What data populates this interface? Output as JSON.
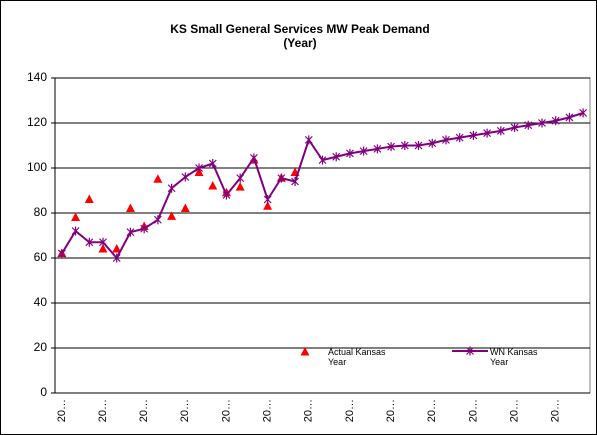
{
  "chart_data": {
    "type": "line",
    "title": "KS Small General Services MW Peak Demand",
    "subtitle": "(Year)",
    "categories": [
      "20…",
      null,
      null,
      "20…",
      null,
      null,
      "20…",
      null,
      null,
      "20…",
      null,
      null,
      "20…",
      null,
      null,
      "20…",
      null,
      null,
      "20…",
      null,
      null,
      "20…",
      null,
      null,
      "20…",
      null,
      null,
      "20…",
      null,
      null,
      "20…",
      null,
      null,
      "20…",
      null,
      null,
      "20…",
      null,
      null
    ],
    "series": [
      {
        "name": "Actual Kansas Year",
        "color": "#ff0000",
        "marker": "triangle",
        "values": [
          62,
          78,
          86,
          64,
          64,
          82,
          74,
          95,
          78.5,
          82,
          98,
          92,
          89,
          91.5,
          103.5,
          83,
          95.5,
          98,
          null,
          null,
          null,
          null,
          null,
          null,
          null,
          null,
          null,
          null,
          null,
          null,
          null,
          null,
          null,
          null,
          null,
          null,
          null,
          null,
          null
        ]
      },
      {
        "name": "WN Kansas Year",
        "color": "#800080",
        "marker": "star",
        "values": [
          62,
          72,
          67,
          67,
          60,
          71.5,
          73,
          77,
          91,
          96,
          100,
          102,
          88,
          95.5,
          104.5,
          86,
          95.5,
          94,
          112.5,
          103.5,
          105,
          106.5,
          107.5,
          108.5,
          109.5,
          110,
          110,
          111,
          112.5,
          113.5,
          114.5,
          115.5,
          116.5,
          118,
          119,
          120,
          121,
          122.5,
          124.5
        ]
      }
    ],
    "ylim": [
      0,
      140
    ],
    "yticks": [
      0,
      20,
      40,
      60,
      80,
      100,
      120,
      140
    ],
    "grid": true
  }
}
